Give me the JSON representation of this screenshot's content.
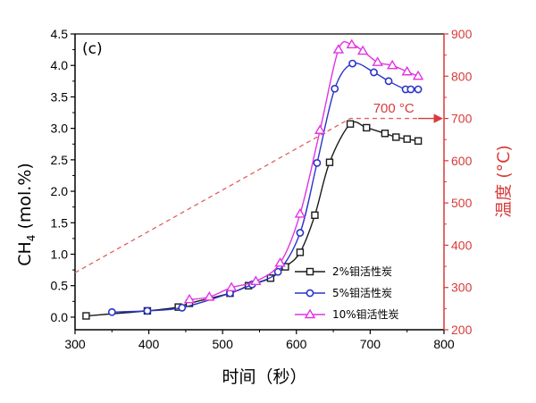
{
  "chart_data": {
    "type": "line",
    "panel_label": "(c)",
    "xlabel": "时间（秒）",
    "ylabel_left": "CH4 (mol.%)",
    "ylabel_left_main": "CH",
    "ylabel_left_sub": "4",
    "ylabel_left_tail": " (mol.%)",
    "ylabel_right": "温度 (°C)",
    "xlim": [
      300,
      800
    ],
    "ylim_left": [
      -0.2,
      4.5
    ],
    "ylim_right": [
      200,
      900
    ],
    "x_ticks": [
      300,
      400,
      500,
      600,
      700,
      800
    ],
    "y_left_ticks": [
      0.0,
      0.5,
      1.0,
      1.5,
      2.0,
      2.5,
      3.0,
      3.5,
      4.0,
      4.5
    ],
    "y_left_tick_labels": [
      "0.0",
      "0.5",
      "1.0",
      "1.5",
      "2.0",
      "2.5",
      "3.0",
      "3.5",
      "4.0",
      "4.5"
    ],
    "y_right_ticks": [
      200,
      300,
      400,
      500,
      600,
      700,
      800,
      900
    ],
    "grid": false,
    "legend_position": "bottom-right",
    "series": [
      {
        "name": "2%钼活性炭",
        "marker": "square",
        "color": "#1a1a1a",
        "x": [
          315,
          398,
          440,
          455,
          510,
          535,
          565,
          585,
          605,
          625,
          645,
          673,
          695,
          720,
          735,
          750,
          765
        ],
        "y": [
          0.02,
          0.1,
          0.16,
          0.22,
          0.38,
          0.5,
          0.62,
          0.8,
          1.03,
          1.62,
          2.46,
          3.07,
          3.01,
          2.92,
          2.86,
          2.83,
          2.8
        ]
      },
      {
        "name": "5%钼活性炭",
        "marker": "circle",
        "color": "#2a35c9",
        "x": [
          350,
          398,
          445,
          510,
          540,
          575,
          605,
          628,
          652,
          676,
          705,
          725,
          748,
          755,
          765
        ],
        "y": [
          0.08,
          0.1,
          0.15,
          0.38,
          0.52,
          0.72,
          1.34,
          2.45,
          3.63,
          4.03,
          3.89,
          3.75,
          3.62,
          3.62,
          3.62
        ]
      },
      {
        "name": "10%钼活性炭",
        "marker": "triangle",
        "color": "#e233e2",
        "x": [
          455,
          482,
          512,
          545,
          578,
          605,
          632,
          657,
          675,
          690,
          710,
          730,
          750,
          765
        ],
        "y": [
          0.28,
          0.32,
          0.47,
          0.57,
          0.86,
          1.64,
          2.97,
          4.25,
          4.33,
          4.23,
          4.05,
          4.0,
          3.9,
          3.83
        ]
      }
    ],
    "temperature_line": {
      "name": "温度",
      "axis": "right",
      "color": "#e06060",
      "style": "dashed",
      "x": [
        300,
        673,
        765
      ],
      "y": [
        335,
        700,
        700
      ]
    },
    "annotation": {
      "text": "700 °C",
      "color": "#d83a3a",
      "arrow_from": [
        765,
        700
      ],
      "arrow_to": [
        798,
        700
      ],
      "text_at": [
        704,
        714
      ]
    }
  }
}
